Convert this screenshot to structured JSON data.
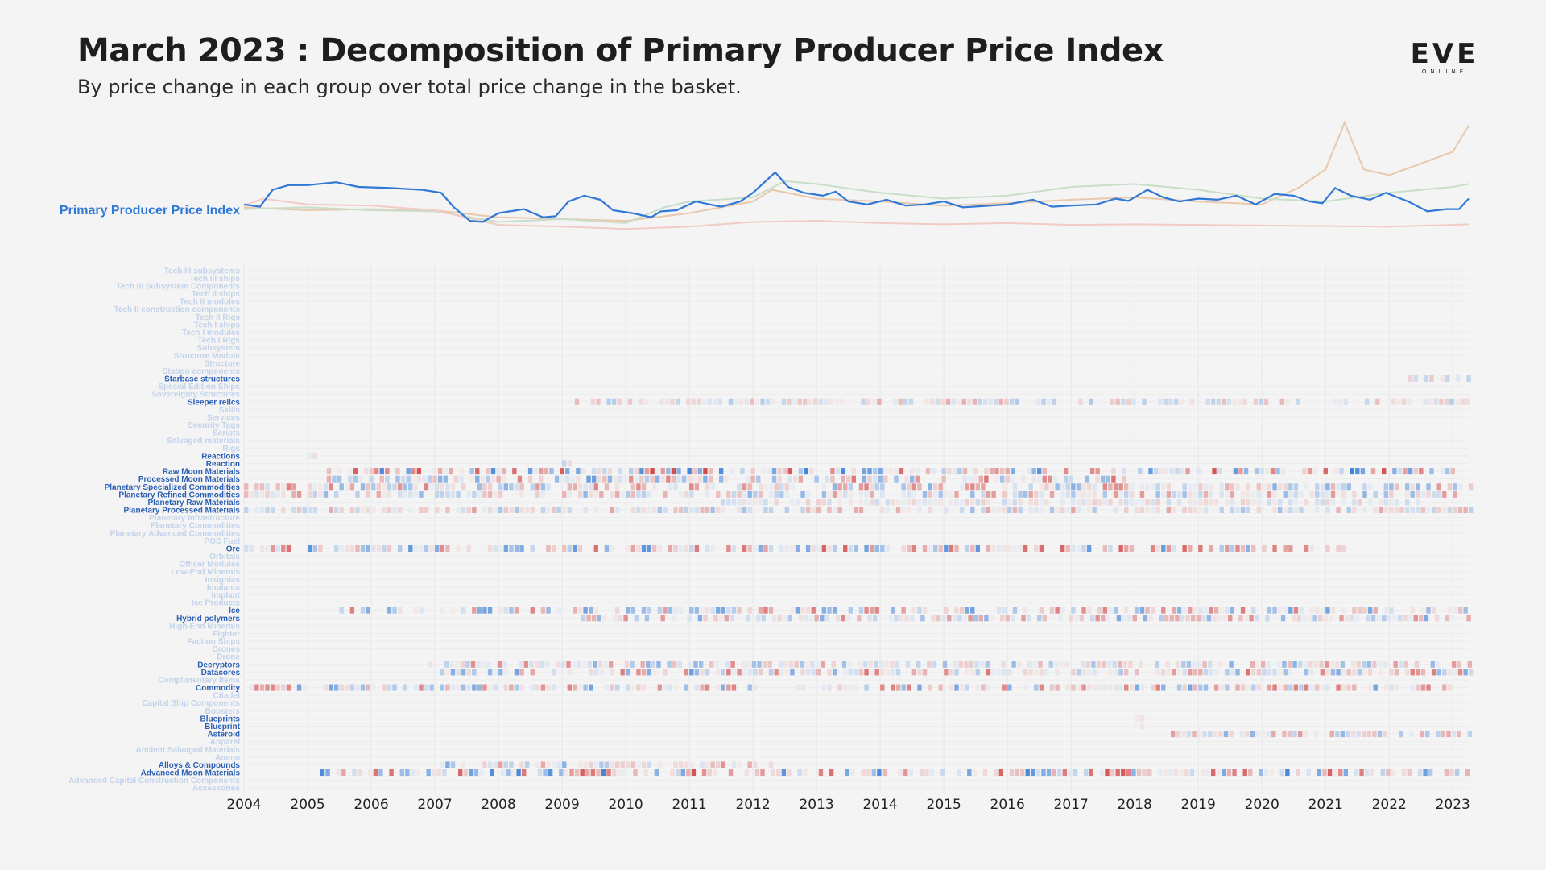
{
  "header": {
    "title": "March 2023 : Decomposition of Primary Producer Price Index",
    "subtitle": "By price change in each group over total price change in the basket.",
    "logo_text": "EVE",
    "logo_subtext": "ONLINE"
  },
  "colors": {
    "background": "#f4f4f4",
    "index_line": "#2f78d6",
    "highlight_label": "#2a5fb5",
    "faded_label": "#c3d3ea",
    "positive": "#d03c3c",
    "negative": "#2f78d6"
  },
  "chart_data": {
    "type": "heatmap",
    "x_range": [
      2004.0,
      2023.25
    ],
    "x_ticks": [
      "2004",
      "2005",
      "2006",
      "2007",
      "2008",
      "2009",
      "2010",
      "2011",
      "2012",
      "2013",
      "2014",
      "2015",
      "2016",
      "2017",
      "2018",
      "2019",
      "2020",
      "2021",
      "2022",
      "2023"
    ],
    "index_label": "Primary Producer Price Index",
    "index_series": [
      [
        2004.0,
        1.0
      ],
      [
        2004.25,
        0.96
      ],
      [
        2004.45,
        1.25
      ],
      [
        2004.7,
        1.33
      ],
      [
        2005.0,
        1.33
      ],
      [
        2005.45,
        1.38
      ],
      [
        2005.8,
        1.3
      ],
      [
        2006.3,
        1.28
      ],
      [
        2006.8,
        1.25
      ],
      [
        2007.1,
        1.2
      ],
      [
        2007.3,
        0.95
      ],
      [
        2007.55,
        0.72
      ],
      [
        2007.75,
        0.7
      ],
      [
        2008.0,
        0.85
      ],
      [
        2008.4,
        0.92
      ],
      [
        2008.7,
        0.78
      ],
      [
        2008.9,
        0.8
      ],
      [
        2009.1,
        1.05
      ],
      [
        2009.35,
        1.15
      ],
      [
        2009.6,
        1.08
      ],
      [
        2009.8,
        0.9
      ],
      [
        2010.1,
        0.85
      ],
      [
        2010.4,
        0.78
      ],
      [
        2010.55,
        0.88
      ],
      [
        2010.8,
        0.9
      ],
      [
        2011.1,
        1.05
      ],
      [
        2011.5,
        0.96
      ],
      [
        2011.8,
        1.05
      ],
      [
        2012.0,
        1.2
      ],
      [
        2012.2,
        1.4
      ],
      [
        2012.35,
        1.55
      ],
      [
        2012.55,
        1.3
      ],
      [
        2012.8,
        1.2
      ],
      [
        2013.1,
        1.15
      ],
      [
        2013.3,
        1.22
      ],
      [
        2013.5,
        1.05
      ],
      [
        2013.8,
        1.0
      ],
      [
        2014.1,
        1.08
      ],
      [
        2014.4,
        0.98
      ],
      [
        2014.7,
        1.0
      ],
      [
        2015.0,
        1.05
      ],
      [
        2015.3,
        0.95
      ],
      [
        2015.6,
        0.97
      ],
      [
        2016.0,
        1.0
      ],
      [
        2016.4,
        1.08
      ],
      [
        2016.7,
        0.96
      ],
      [
        2017.0,
        0.98
      ],
      [
        2017.4,
        1.0
      ],
      [
        2017.7,
        1.1
      ],
      [
        2017.9,
        1.06
      ],
      [
        2018.2,
        1.25
      ],
      [
        2018.45,
        1.12
      ],
      [
        2018.7,
        1.05
      ],
      [
        2019.0,
        1.1
      ],
      [
        2019.3,
        1.08
      ],
      [
        2019.6,
        1.15
      ],
      [
        2019.9,
        1.0
      ],
      [
        2020.2,
        1.18
      ],
      [
        2020.5,
        1.15
      ],
      [
        2020.75,
        1.05
      ],
      [
        2020.95,
        1.02
      ],
      [
        2021.15,
        1.28
      ],
      [
        2021.4,
        1.15
      ],
      [
        2021.7,
        1.08
      ],
      [
        2021.95,
        1.2
      ],
      [
        2022.3,
        1.05
      ],
      [
        2022.6,
        0.88
      ],
      [
        2022.9,
        0.92
      ],
      [
        2023.1,
        0.92
      ],
      [
        2023.25,
        1.1
      ]
    ],
    "context_series": [
      {
        "color": "#e8c9ad",
        "values": [
          [
            2004,
            0.95
          ],
          [
            2005,
            0.9
          ],
          [
            2006,
            0.92
          ],
          [
            2007,
            0.9
          ],
          [
            2008,
            0.78
          ],
          [
            2009,
            0.75
          ],
          [
            2010,
            0.72
          ],
          [
            2011,
            0.85
          ],
          [
            2012,
            1.05
          ],
          [
            2012.3,
            1.25
          ],
          [
            2013,
            1.1
          ],
          [
            2014,
            1.05
          ],
          [
            2015,
            0.98
          ],
          [
            2016,
            1.02
          ],
          [
            2017,
            1.08
          ],
          [
            2018,
            1.12
          ],
          [
            2019,
            1.05
          ],
          [
            2020,
            1.0
          ],
          [
            2020.6,
            1.3
          ],
          [
            2021,
            1.6
          ],
          [
            2021.3,
            2.4
          ],
          [
            2021.6,
            1.6
          ],
          [
            2022,
            1.5
          ],
          [
            2022.5,
            1.7
          ],
          [
            2023,
            1.9
          ],
          [
            2023.25,
            2.35
          ]
        ]
      },
      {
        "color": "#c8dec8",
        "values": [
          [
            2004,
            0.92
          ],
          [
            2005,
            0.95
          ],
          [
            2006,
            0.9
          ],
          [
            2007,
            0.88
          ],
          [
            2008,
            0.7
          ],
          [
            2009,
            0.75
          ],
          [
            2010,
            0.68
          ],
          [
            2010.6,
            0.95
          ],
          [
            2011,
            1.05
          ],
          [
            2012,
            1.12
          ],
          [
            2012.5,
            1.4
          ],
          [
            2013,
            1.35
          ],
          [
            2014,
            1.2
          ],
          [
            2015,
            1.1
          ],
          [
            2016,
            1.15
          ],
          [
            2017,
            1.3
          ],
          [
            2018,
            1.35
          ],
          [
            2019,
            1.25
          ],
          [
            2020,
            1.1
          ],
          [
            2021,
            1.05
          ],
          [
            2022,
            1.2
          ],
          [
            2023,
            1.3
          ],
          [
            2023.25,
            1.35
          ]
        ]
      },
      {
        "color": "#f2cbc6",
        "values": [
          [
            2004,
            0.98
          ],
          [
            2004.3,
            1.1
          ],
          [
            2005,
            1.0
          ],
          [
            2006,
            0.98
          ],
          [
            2007,
            0.9
          ],
          [
            2008,
            0.65
          ],
          [
            2009,
            0.62
          ],
          [
            2010,
            0.58
          ],
          [
            2011,
            0.62
          ],
          [
            2012,
            0.7
          ],
          [
            2013,
            0.72
          ],
          [
            2014,
            0.68
          ],
          [
            2015,
            0.66
          ],
          [
            2016,
            0.68
          ],
          [
            2017,
            0.65
          ],
          [
            2018,
            0.66
          ],
          [
            2019,
            0.65
          ],
          [
            2020,
            0.64
          ],
          [
            2021,
            0.63
          ],
          [
            2022,
            0.62
          ],
          [
            2023,
            0.65
          ],
          [
            2023.25,
            0.66
          ]
        ]
      }
    ],
    "rows": [
      {
        "label": "Tech III subsystems",
        "active": false
      },
      {
        "label": "Tech III ships",
        "active": false
      },
      {
        "label": "Tech III Subsystem Components",
        "active": false
      },
      {
        "label": "Tech II ships",
        "active": false
      },
      {
        "label": "Tech II modules",
        "active": false
      },
      {
        "label": "Tech II construction components",
        "active": false
      },
      {
        "label": "Tech II Rigs",
        "active": false
      },
      {
        "label": "Tech I ships",
        "active": false
      },
      {
        "label": "Tech I modules",
        "active": false
      },
      {
        "label": "Tech I Rigs",
        "active": false
      },
      {
        "label": "Subsystem",
        "active": false
      },
      {
        "label": "Structure Module",
        "active": false
      },
      {
        "label": "Structure",
        "active": false
      },
      {
        "label": "Station components",
        "active": false
      },
      {
        "label": "Starbase structures",
        "active": true,
        "range": [
          2022.3,
          2023.25
        ],
        "intensity": 0.25
      },
      {
        "label": "Special Edition Ships",
        "active": false
      },
      {
        "label": "Sovereignty Structures",
        "active": false
      },
      {
        "label": "Sleeper relics",
        "active": true,
        "range": [
          2009.2,
          2023.25
        ],
        "intensity": 0.35
      },
      {
        "label": "Skills",
        "active": false
      },
      {
        "label": "Services",
        "active": false
      },
      {
        "label": "Security Tags",
        "active": false
      },
      {
        "label": "Scripts",
        "active": false
      },
      {
        "label": "Salvaged materials",
        "active": false
      },
      {
        "label": "Rigs",
        "active": false
      },
      {
        "label": "Reactions",
        "active": true,
        "range": [
          2005.0,
          2005.1
        ],
        "intensity": 0.1
      },
      {
        "label": "Reaction",
        "active": true,
        "range": [
          2009.0,
          2009.1
        ],
        "intensity": 0.2
      },
      {
        "label": "Raw Moon Materials",
        "active": true,
        "range": [
          2005.3,
          2023.25
        ],
        "intensity": 0.9
      },
      {
        "label": "Processed Moon Materials",
        "active": true,
        "range": [
          2005.3,
          2017.8
        ],
        "intensity": 0.7
      },
      {
        "label": "Planetary Specialized Commodities",
        "active": true,
        "range": [
          2004.0,
          2023.25
        ],
        "intensity": 0.55
      },
      {
        "label": "Planetary Refined Commodities",
        "active": true,
        "range": [
          2004.0,
          2023.25
        ],
        "intensity": 0.45
      },
      {
        "label": "Planetary Raw Materials",
        "active": true,
        "range": [
          2011.5,
          2022.5
        ],
        "intensity": 0.15
      },
      {
        "label": "Planetary Processed Materials",
        "active": true,
        "range": [
          2004.0,
          2023.25
        ],
        "intensity": 0.4
      },
      {
        "label": "Planetary Infrastructure",
        "active": false
      },
      {
        "label": "Planetary Commodities",
        "active": false
      },
      {
        "label": "Planetary Advanced Commodities",
        "active": false
      },
      {
        "label": "POS Fuel",
        "active": false
      },
      {
        "label": "Ore",
        "active": true,
        "range": [
          2004.0,
          2021.4
        ],
        "intensity": 0.75
      },
      {
        "label": "Orbitals",
        "active": false
      },
      {
        "label": "Officer Modules",
        "active": false
      },
      {
        "label": "Low-End Minerals",
        "active": false
      },
      {
        "label": "Insignias",
        "active": false
      },
      {
        "label": "Implants",
        "active": false
      },
      {
        "label": "Implant",
        "active": false
      },
      {
        "label": "Ice Products",
        "active": false
      },
      {
        "label": "Ice",
        "active": true,
        "range": [
          2005.5,
          2023.25
        ],
        "intensity": 0.6
      },
      {
        "label": "Hybrid polymers",
        "active": true,
        "range": [
          2009.3,
          2023.25
        ],
        "intensity": 0.55
      },
      {
        "label": "High-End Minerals",
        "active": false
      },
      {
        "label": "Fighter",
        "active": false
      },
      {
        "label": "Faction Ships",
        "active": false
      },
      {
        "label": "Drones",
        "active": false
      },
      {
        "label": "Drone",
        "active": false
      },
      {
        "label": "Decryptors",
        "active": true,
        "range": [
          2006.9,
          2023.25
        ],
        "intensity": 0.5
      },
      {
        "label": "Datacores",
        "active": true,
        "range": [
          2007.0,
          2023.25
        ],
        "intensity": 0.65
      },
      {
        "label": "Complimentary Items",
        "active": false
      },
      {
        "label": "Commodity",
        "active": true,
        "range": [
          2004.0,
          2023.25
        ],
        "intensity": 0.6
      },
      {
        "label": "Citadel",
        "active": false
      },
      {
        "label": "Capital Ship Components",
        "active": false
      },
      {
        "label": "Boosters",
        "active": false
      },
      {
        "label": "Blueprints",
        "active": true,
        "range": [
          2018.0,
          2018.1
        ],
        "intensity": 0.05
      },
      {
        "label": "Blueprint",
        "active": true,
        "range": [
          2018.0,
          2018.1
        ],
        "intensity": 0.05
      },
      {
        "label": "Asteroid",
        "active": true,
        "range": [
          2018.4,
          2023.25
        ],
        "intensity": 0.45
      },
      {
        "label": "Apparel",
        "active": false
      },
      {
        "label": "Ancient Salvaged Materials",
        "active": false
      },
      {
        "label": "Ammo",
        "active": false
      },
      {
        "label": "Alloys & Compounds",
        "active": true,
        "range": [
          2007.0,
          2012.3
        ],
        "intensity": 0.55
      },
      {
        "label": "Advanced Moon Materials",
        "active": true,
        "range": [
          2005.2,
          2023.25
        ],
        "intensity": 0.85
      },
      {
        "label": "Advanced Capital Construction Components",
        "active": false
      },
      {
        "label": "Accessories",
        "active": false
      }
    ]
  }
}
